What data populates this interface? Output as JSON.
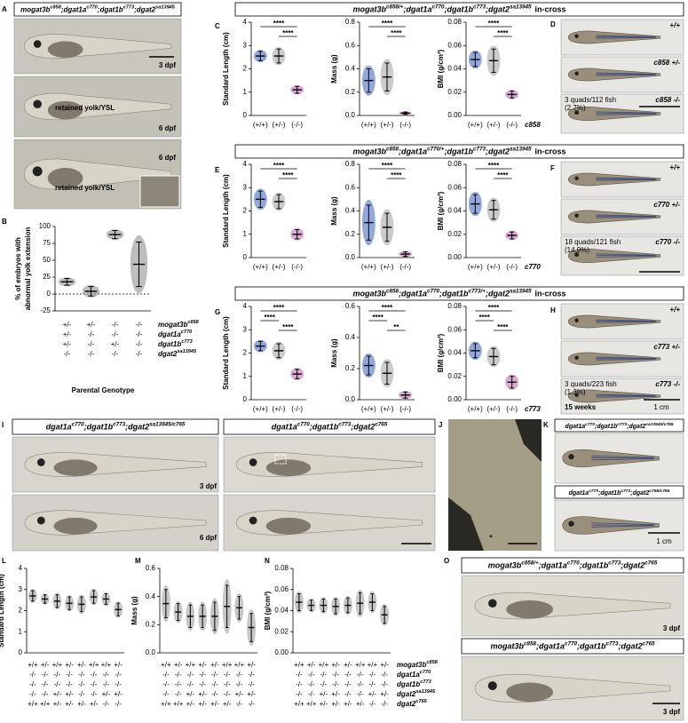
{
  "figure": {
    "panel_labels": [
      "A",
      "B",
      "C",
      "D",
      "E",
      "F",
      "G",
      "H",
      "I",
      "J",
      "K",
      "L",
      "M",
      "N",
      "O"
    ],
    "a": {
      "header": [
        {
          "t": "mogat3b"
        },
        {
          "s": "c858"
        },
        {
          "t": ";dgat1a"
        },
        {
          "s": "c770"
        },
        {
          "t": ";dgat1b"
        },
        {
          "s": "c773"
        },
        {
          "t": ";dgat2"
        },
        {
          "s": "sa13945"
        }
      ],
      "captions": [
        "3 dpf",
        "6 dpf",
        "retained yolk/YSL",
        "6 dpf",
        "retained yolk/YSL"
      ]
    },
    "c_header": {
      "genotype": [
        {
          "t": "mogat3b"
        },
        {
          "s": "c858/+"
        },
        {
          "t": ";dgat1a"
        },
        {
          "s": "c770"
        },
        {
          "t": ";dgat1b"
        },
        {
          "s": "c773"
        },
        {
          "t": ";dgat2"
        },
        {
          "s": "sa13945"
        }
      ],
      "suffix": "in-cross"
    },
    "e_header": {
      "genotype": [
        {
          "t": "mogat3b"
        },
        {
          "s": "c858"
        },
        {
          "t": ";dgat1a"
        },
        {
          "s": "c770/+"
        },
        {
          "t": ";dgat1b"
        },
        {
          "s": "c773"
        },
        {
          "t": ";dgat2"
        },
        {
          "s": "sa13945"
        }
      ],
      "suffix": "in-cross"
    },
    "g_header": {
      "genotype": [
        {
          "t": "mogat3b"
        },
        {
          "s": "c858"
        },
        {
          "t": ";dgat1a"
        },
        {
          "s": "c770"
        },
        {
          "t": ";dgat1b"
        },
        {
          "s": "c773/+"
        },
        {
          "t": ";dgat2"
        },
        {
          "s": "sa13945"
        }
      ],
      "suffix": "in-cross"
    },
    "d": {
      "labels": [
        "+/+",
        "c858 +/-",
        "3 quads/112 fish",
        "(2.7%)",
        "c858 -/-"
      ]
    },
    "f": {
      "labels": [
        "+/+",
        "c770 +/-",
        "18 quads/121 fish",
        "(14.9%)",
        "c770 -/-"
      ]
    },
    "h": {
      "labels": [
        "+/+",
        "c773 +/-",
        "3 quads/223 fish",
        "(1.3%)",
        "c773 -/-"
      ],
      "age": "15 weeks",
      "scale": "1 cm"
    },
    "b_table": {
      "row_labels": [
        [
          {
            "t": "mogat3b"
          },
          {
            "s": "c858"
          }
        ],
        [
          {
            "t": "dgat1a"
          },
          {
            "s": "c770"
          }
        ],
        [
          {
            "t": "dgat1b"
          },
          {
            "s": "c773"
          }
        ],
        [
          {
            "t": "dgat2"
          },
          {
            "s": "sa13945"
          }
        ]
      ],
      "rows": [
        [
          "+/-",
          "+/-",
          "-/-",
          "-/-"
        ],
        [
          "+/-",
          "-/-",
          "-/-",
          "-/-"
        ],
        [
          "+/-",
          "-/-",
          "+/-",
          "-/-"
        ],
        [
          "-/-",
          "-/-",
          "-/-",
          "-/-"
        ]
      ],
      "xlabel": "Parental Genotype"
    },
    "i": {
      "headers": [
        [
          {
            "t": "dgat1a"
          },
          {
            "s": "c770"
          },
          {
            "t": ";dgat1b"
          },
          {
            "s": "c773"
          },
          {
            "t": ";dgat2"
          },
          {
            "s": "sa13945/c765"
          }
        ],
        [
          {
            "t": "dgat1a"
          },
          {
            "s": "c770"
          },
          {
            "t": ";dgat1b"
          },
          {
            "s": "c773"
          },
          {
            "t": ";dgat2"
          },
          {
            "s": "c765"
          }
        ]
      ],
      "captions": [
        "3 dpf",
        "6 dpf"
      ]
    },
    "j": {
      "mark": "*"
    },
    "k": {
      "headers": [
        [
          {
            "t": "dgat1a"
          },
          {
            "s": "c770"
          },
          {
            "t": ";dgat1b"
          },
          {
            "s": "c773"
          },
          {
            "t": ";dgat2"
          },
          {
            "s": "sa13945/c765"
          }
        ],
        [
          {
            "t": "dgat1a"
          },
          {
            "s": "c770"
          },
          {
            "t": ";dgat1b"
          },
          {
            "s": "c773"
          },
          {
            "t": ";dgat2"
          },
          {
            "s": "c765/c765"
          }
        ]
      ],
      "scale": "1 cm"
    },
    "lmn_table": {
      "row_labels": [
        [
          {
            "t": "mogat3b"
          },
          {
            "s": "c858"
          }
        ],
        [
          {
            "t": "dgat1a"
          },
          {
            "s": "c770"
          }
        ],
        [
          {
            "t": "dgat1b"
          },
          {
            "s": "c773"
          }
        ],
        [
          {
            "t": "dgat2"
          },
          {
            "s": "sa13945"
          }
        ],
        [
          {
            "t": "dgat2"
          },
          {
            "s": "c765"
          }
        ]
      ],
      "rows": [
        [
          "+/+",
          "+/-",
          "+/+",
          "+/-",
          "+/-",
          "+/+",
          "+/+",
          "+/-"
        ],
        [
          "-/-",
          "-/-",
          "-/-",
          "-/-",
          "-/-",
          "-/-",
          "-/-",
          "-/-"
        ],
        [
          "-/-",
          "-/-",
          "-/-",
          "-/-",
          "-/-",
          "-/-",
          "-/-",
          "-/-"
        ],
        [
          "-/-",
          "-/-",
          "+/-",
          "+/-",
          "-/-",
          "-/-",
          "+/-",
          "+/-"
        ],
        [
          "+/+",
          "+/+",
          "+/-",
          "+/-",
          "+/-",
          "+/-",
          "-/-",
          "-/-"
        ]
      ]
    },
    "o": {
      "headers": [
        [
          {
            "t": "mogat3b"
          },
          {
            "s": "c858/+"
          },
          {
            "t": ";dgat1a"
          },
          {
            "s": "c770"
          },
          {
            "t": ";dgat1b"
          },
          {
            "s": "c773"
          },
          {
            "t": ";dgat2"
          },
          {
            "s": "c765"
          }
        ],
        [
          {
            "t": "mogat3b"
          },
          {
            "s": "c858"
          },
          {
            "t": ";dgat1a"
          },
          {
            "s": "c770"
          },
          {
            "t": ";dgat1b"
          },
          {
            "s": "c773"
          },
          {
            "t": ";dgat2"
          },
          {
            "s": "c765"
          }
        ]
      ],
      "captions": [
        "3 dpf",
        "3 dpf"
      ]
    }
  },
  "chart_data": [
    {
      "type": "dot",
      "ylabel": [
        "% of embryos with",
        "abnormal yolk extension"
      ],
      "categories": [
        null,
        null,
        null,
        null
      ],
      "values": [
        18,
        4,
        88,
        44
      ],
      "errors": [
        5,
        7,
        6,
        33
      ],
      "color": "#888888",
      "ylim": [
        -25,
        100
      ],
      "yticks": [
        -25,
        0,
        25,
        50,
        75,
        100
      ],
      "reference_line": 0,
      "brackets": []
    },
    {
      "type": "dot",
      "ylabel": [
        "Standard Length (cm)"
      ],
      "categories": [
        "(+/+)",
        "(+/-)",
        "(-/-)"
      ],
      "values": [
        2.55,
        2.55,
        1.1
      ],
      "errors": [
        0.2,
        0.3,
        0.15
      ],
      "colors": [
        "#3a5fb8",
        "#a0a0a0",
        "#c060b0"
      ],
      "ylim": [
        0,
        4
      ],
      "yticks": [
        0,
        1,
        2,
        3,
        4
      ],
      "brackets": [
        {
          "label": "****",
          "pair": [
            "(+/+)",
            "(-/-)"
          ]
        },
        {
          "label": "****",
          "pair": [
            "(+/-)",
            "(-/-)"
          ]
        }
      ]
    },
    {
      "type": "dot",
      "ylabel": [
        "Mass (g)"
      ],
      "categories": [
        "(+/+)",
        "(+/-)",
        "(-/-)"
      ],
      "values": [
        0.3,
        0.33,
        0.02
      ],
      "errors": [
        0.1,
        0.12,
        0.01
      ],
      "colors": [
        "#3a5fb8",
        "#a0a0a0",
        "#c060b0"
      ],
      "ylim": [
        0,
        0.8
      ],
      "yticks": [
        {
          "value": 0,
          "label": "0.0"
        },
        0.2,
        0.4,
        0.6,
        0.8
      ],
      "brackets": [
        {
          "label": "****",
          "pair": [
            "(+/+)",
            "(-/-)"
          ]
        },
        {
          "label": "****",
          "pair": [
            "(+/-)",
            "(-/-)"
          ]
        }
      ]
    },
    {
      "type": "dot",
      "ylabel": [
        "BMI (g/cm²)"
      ],
      "categories": [
        "(+/+)",
        "(+/-)",
        "(-/-)"
      ],
      "values": [
        0.048,
        0.047,
        0.018
      ],
      "errors": [
        0.006,
        0.01,
        0.003
      ],
      "colors": [
        "#3a5fb8",
        "#a0a0a0",
        "#c060b0"
      ],
      "ylim": [
        0,
        0.08
      ],
      "yticks": [
        {
          "value": 0,
          "label": "0.00"
        },
        0.02,
        0.04,
        0.06,
        0.08
      ],
      "brackets": [
        {
          "label": "****",
          "pair": [
            "(+/+)",
            "(-/-)"
          ]
        },
        {
          "label": "****",
          "pair": [
            "(+/-)",
            "(-/-)"
          ]
        }
      ],
      "strain": "c858"
    },
    {
      "type": "dot",
      "ylabel": [
        "Standard Length (cm)"
      ],
      "categories": [
        "(+/+)",
        "(+/-)",
        "(-/-)"
      ],
      "values": [
        2.5,
        2.4,
        1.0
      ],
      "errors": [
        0.35,
        0.3,
        0.2
      ],
      "colors": [
        "#3a5fb8",
        "#a0a0a0",
        "#c060b0"
      ],
      "ylim": [
        0,
        4
      ],
      "yticks": [
        0,
        1,
        2,
        3,
        4
      ],
      "brackets": [
        {
          "label": "****",
          "pair": [
            "(+/+)",
            "(-/-)"
          ]
        },
        {
          "label": "****",
          "pair": [
            "(+/-)",
            "(-/-)"
          ]
        }
      ]
    },
    {
      "type": "dot",
      "ylabel": [
        "Mass (g)"
      ],
      "categories": [
        "(+/+)",
        "(+/-)",
        "(-/-)"
      ],
      "values": [
        0.3,
        0.26,
        0.03
      ],
      "errors": [
        0.15,
        0.12,
        0.02
      ],
      "colors": [
        "#3a5fb8",
        "#a0a0a0",
        "#c060b0"
      ],
      "ylim": [
        0,
        0.8
      ],
      "yticks": [
        {
          "value": 0,
          "label": "0.0"
        },
        0.2,
        0.4,
        0.6,
        0.8
      ],
      "brackets": [
        {
          "label": "****",
          "pair": [
            "(+/+)",
            "(-/-)"
          ]
        },
        {
          "label": "****",
          "pair": [
            "(+/-)",
            "(-/-)"
          ]
        }
      ]
    },
    {
      "type": "dot",
      "ylabel": [
        "BMI (g/cm²)"
      ],
      "categories": [
        "(+/+)",
        "(+/-)",
        "(-/-)"
      ],
      "values": [
        0.046,
        0.041,
        0.019
      ],
      "errors": [
        0.008,
        0.008,
        0.003
      ],
      "colors": [
        "#3a5fb8",
        "#a0a0a0",
        "#c060b0"
      ],
      "ylim": [
        0,
        0.08
      ],
      "yticks": [
        {
          "value": 0,
          "label": "0.00"
        },
        0.02,
        0.04,
        0.06,
        0.08
      ],
      "brackets": [
        {
          "label": "****",
          "pair": [
            "(+/+)",
            "(-/-)"
          ]
        },
        {
          "label": "****",
          "pair": [
            "(+/-)",
            "(-/-)"
          ]
        }
      ],
      "strain": "c770"
    },
    {
      "type": "dot",
      "ylabel": [
        "Standard Length (cm)"
      ],
      "categories": [
        "(+/+)",
        "(+/-)",
        "(-/-)"
      ],
      "values": [
        2.3,
        2.1,
        1.1
      ],
      "errors": [
        0.2,
        0.3,
        0.2
      ],
      "colors": [
        "#3a5fb8",
        "#a0a0a0",
        "#c060b0"
      ],
      "ylim": [
        0,
        4
      ],
      "yticks": [
        0,
        1,
        2,
        3,
        4
      ],
      "brackets": [
        {
          "label": "****",
          "pair": [
            "(+/+)",
            "(-/-)"
          ]
        },
        {
          "label": "****",
          "pair": [
            "(+/+)",
            "(+/-)"
          ]
        },
        {
          "label": "****",
          "pair": [
            "(+/-)",
            "(-/-)"
          ]
        }
      ]
    },
    {
      "type": "dot",
      "ylabel": [
        "Mass (g)"
      ],
      "categories": [
        "(+/+)",
        "(+/-)",
        "(-/-)"
      ],
      "values": [
        0.22,
        0.17,
        0.03
      ],
      "errors": [
        0.06,
        0.07,
        0.02
      ],
      "colors": [
        "#3a5fb8",
        "#a0a0a0",
        "#c060b0"
      ],
      "ylim": [
        0,
        0.6
      ],
      "yticks": [
        {
          "value": 0,
          "label": "0.0"
        },
        0.2,
        0.4,
        0.6
      ],
      "brackets": [
        {
          "label": "****",
          "pair": [
            "(+/+)",
            "(-/-)"
          ]
        },
        {
          "label": "****",
          "pair": [
            "(+/+)",
            "(+/-)"
          ]
        },
        {
          "label": "**",
          "pair": [
            "(+/-)",
            "(-/-)"
          ]
        }
      ]
    },
    {
      "type": "dot",
      "ylabel": [
        "BMI (g/cm²)"
      ],
      "categories": [
        "(+/+)",
        "(+/-)",
        "(-/-)"
      ],
      "values": [
        0.042,
        0.037,
        0.015
      ],
      "errors": [
        0.006,
        0.007,
        0.005
      ],
      "colors": [
        "#3a5fb8",
        "#a0a0a0",
        "#c060b0"
      ],
      "ylim": [
        0,
        0.08
      ],
      "yticks": [
        {
          "value": 0,
          "label": "0.00"
        },
        0.02,
        0.04,
        0.06,
        0.08
      ],
      "brackets": [
        {
          "label": "****",
          "pair": [
            "(+/+)",
            "(-/-)"
          ]
        },
        {
          "label": "****",
          "pair": [
            "(+/+)",
            "(+/-)"
          ]
        },
        {
          "label": "****",
          "pair": [
            "(+/-)",
            "(-/-)"
          ]
        }
      ],
      "strain": "c773"
    },
    {
      "type": "dot",
      "ylabel": [
        "Standard Length (cm)"
      ],
      "categories": [
        null,
        null,
        null,
        null,
        null,
        null,
        null,
        null
      ],
      "values": [
        2.7,
        2.55,
        2.45,
        2.35,
        2.3,
        2.65,
        2.55,
        2.05
      ],
      "errors": [
        0.25,
        0.2,
        0.3,
        0.3,
        0.35,
        0.3,
        0.25,
        0.3
      ],
      "color": "#999999",
      "ylim": [
        0,
        4
      ],
      "yticks": [
        0,
        1,
        2,
        3,
        4
      ],
      "brackets": []
    },
    {
      "type": "dot",
      "ylabel": [
        "Mass (g)"
      ],
      "categories": [
        null,
        null,
        null,
        null,
        null,
        null,
        null,
        null
      ],
      "values": [
        0.35,
        0.29,
        0.26,
        0.26,
        0.26,
        0.33,
        0.32,
        0.18
      ],
      "errors": [
        0.1,
        0.06,
        0.08,
        0.08,
        0.1,
        0.15,
        0.08,
        0.1
      ],
      "color": "#999999",
      "ylim": [
        0,
        0.6
      ],
      "yticks": [
        {
          "value": 0,
          "label": "0.0"
        },
        0.2,
        0.4,
        0.6
      ],
      "brackets": []
    },
    {
      "type": "dot",
      "ylabel": [
        "BMI (g/cm²)"
      ],
      "categories": [
        null,
        null,
        null,
        null,
        null,
        null,
        null,
        null
      ],
      "values": [
        0.048,
        0.045,
        0.045,
        0.044,
        0.045,
        0.047,
        0.048,
        0.036
      ],
      "errors": [
        0.008,
        0.005,
        0.006,
        0.007,
        0.007,
        0.01,
        0.008,
        0.008
      ],
      "color": "#999999",
      "ylim": [
        0,
        0.08
      ],
      "yticks": [
        {
          "value": 0,
          "label": "0.00"
        },
        0.02,
        0.04,
        0.06,
        0.08
      ],
      "brackets": []
    }
  ]
}
